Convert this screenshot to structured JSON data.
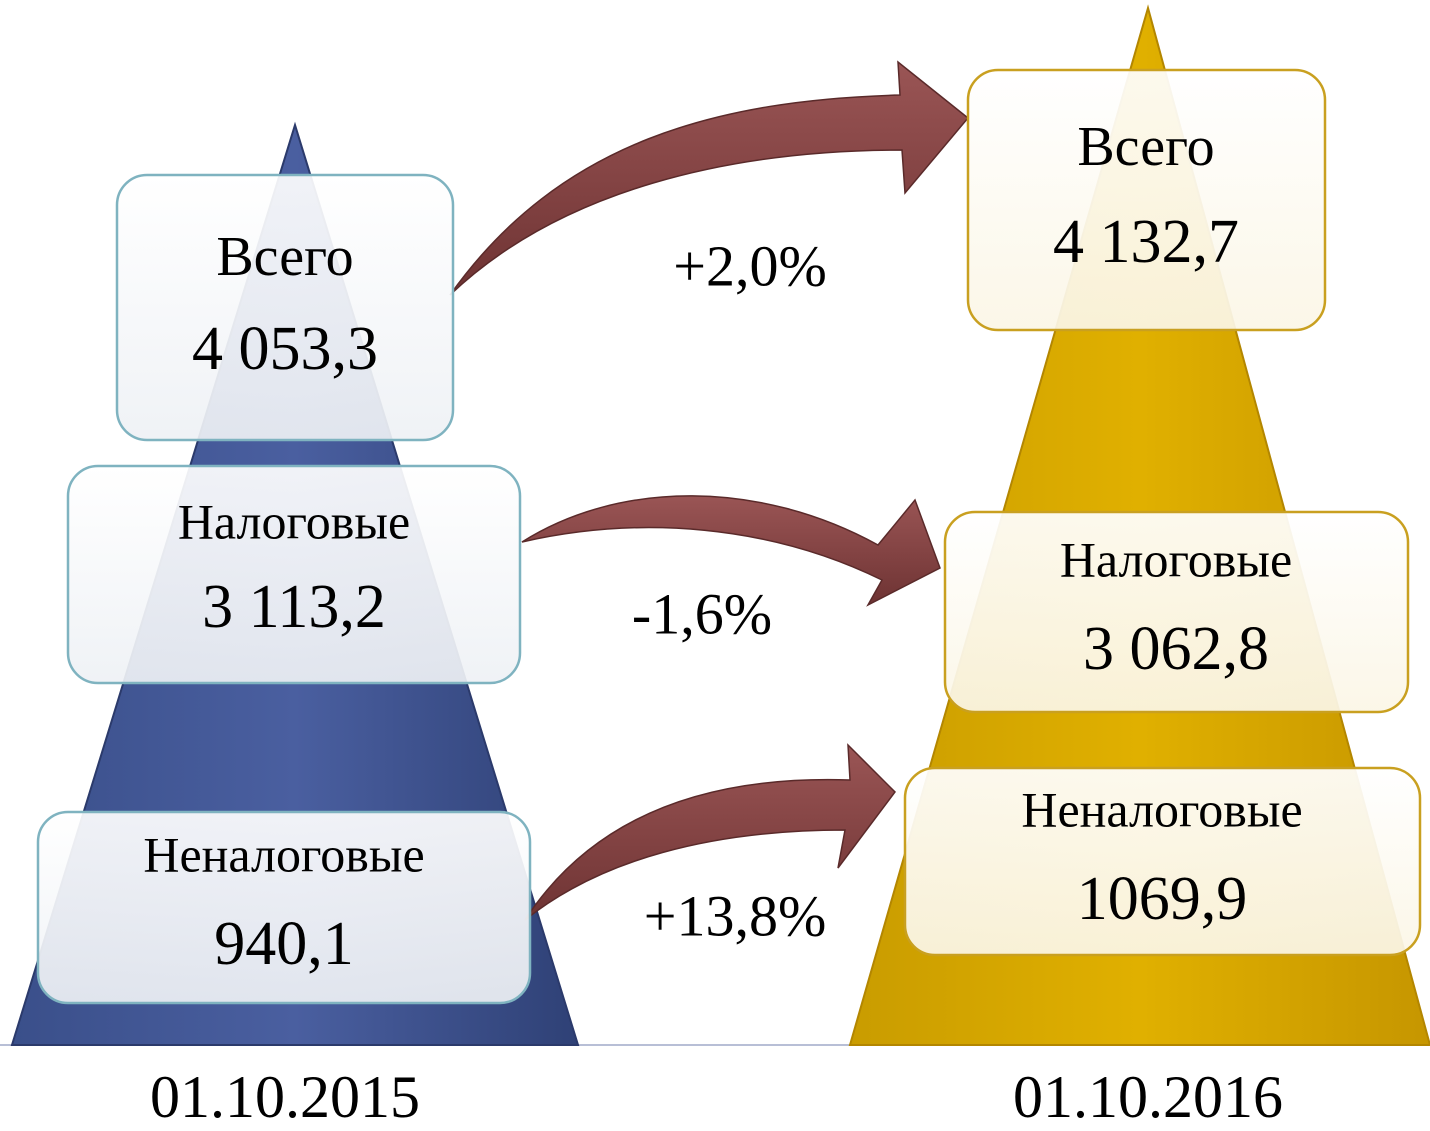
{
  "left": {
    "date": "01.10.2015",
    "boxes": [
      {
        "label": "Всего",
        "value": "4 053,3"
      },
      {
        "label": "Налоговые",
        "value": "3 113,2"
      },
      {
        "label": "Неналоговые",
        "value": "940,1"
      }
    ]
  },
  "right": {
    "date": "01.10.2016",
    "boxes": [
      {
        "label": "Всего",
        "value": "4 132,7"
      },
      {
        "label": "Налоговые",
        "value": "3 062,8"
      },
      {
        "label": "Неналоговые",
        "value": "1069,9"
      }
    ]
  },
  "changes": [
    "+2,0%",
    "-1,6%",
    "+13,8%"
  ]
}
